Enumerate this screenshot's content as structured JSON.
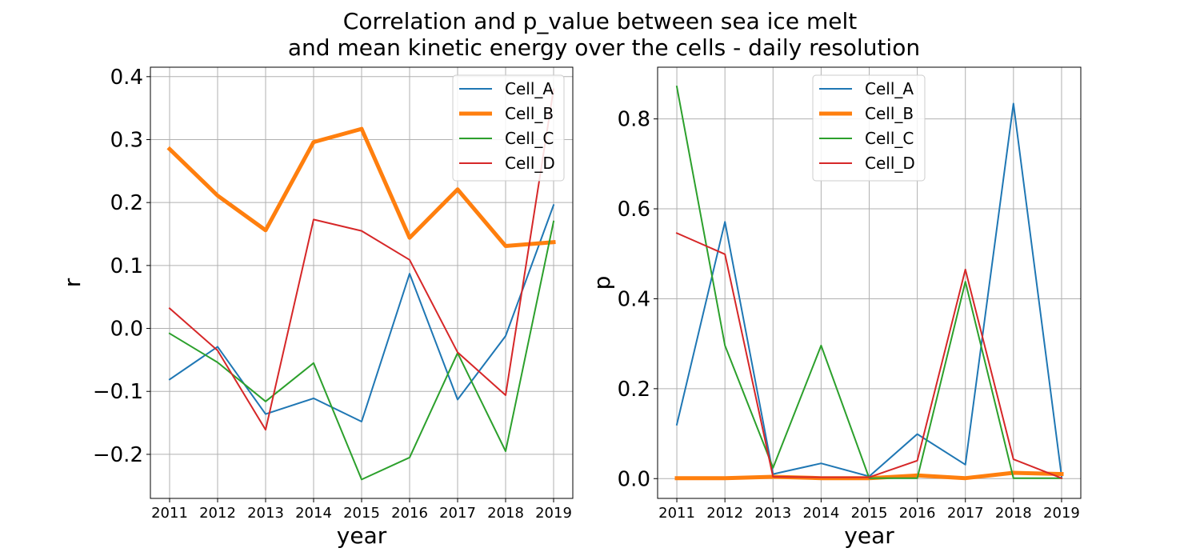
{
  "figure": {
    "title_line1": "Correlation and p_value between sea ice melt",
    "title_line2": "and mean kinetic energy over the cells - daily resolution"
  },
  "chart_data": [
    {
      "type": "line",
      "xlabel": "year",
      "ylabel": "r",
      "x": [
        2011,
        2012,
        2013,
        2014,
        2015,
        2016,
        2017,
        2018,
        2019
      ],
      "xlim": [
        2010.6,
        2019.4
      ],
      "ylim": [
        -0.27,
        0.415
      ],
      "xticks": [
        "2011",
        "2012",
        "2013",
        "2014",
        "2015",
        "2016",
        "2017",
        "2018",
        "2019"
      ],
      "yticks": [
        -0.2,
        -0.1,
        0.0,
        0.1,
        0.2,
        0.3,
        0.4
      ],
      "ytick_labels": [
        "−0.2",
        "−0.1",
        "0.0",
        "0.1",
        "0.2",
        "0.3",
        "0.4"
      ],
      "grid": true,
      "legend_position": "top-right",
      "series": [
        {
          "name": "Cell_A",
          "color": "#1f77b4",
          "width": 2,
          "values": [
            -0.081,
            -0.029,
            -0.136,
            -0.111,
            -0.148,
            0.087,
            -0.113,
            -0.012,
            0.196
          ]
        },
        {
          "name": "Cell_B",
          "color": "#ff7f0e",
          "width": 5,
          "values": [
            0.285,
            0.211,
            0.156,
            0.296,
            0.317,
            0.144,
            0.221,
            0.131,
            0.137
          ]
        },
        {
          "name": "Cell_C",
          "color": "#2ca02c",
          "width": 2,
          "values": [
            -0.008,
            -0.054,
            -0.116,
            -0.055,
            -0.24,
            -0.205,
            -0.039,
            -0.195,
            0.17
          ]
        },
        {
          "name": "Cell_D",
          "color": "#d62728",
          "width": 2,
          "values": [
            0.032,
            -0.035,
            -0.161,
            0.173,
            0.155,
            0.109,
            -0.038,
            -0.106,
            0.38
          ]
        }
      ]
    },
    {
      "type": "line",
      "xlabel": "year",
      "ylabel": "p",
      "x": [
        2011,
        2012,
        2013,
        2014,
        2015,
        2016,
        2017,
        2018,
        2019
      ],
      "xlim": [
        2010.6,
        2019.4
      ],
      "ylim": [
        -0.044,
        0.915
      ],
      "xticks": [
        "2011",
        "2012",
        "2013",
        "2014",
        "2015",
        "2016",
        "2017",
        "2018",
        "2019"
      ],
      "yticks": [
        0.0,
        0.2,
        0.4,
        0.6,
        0.8
      ],
      "ytick_labels": [
        "0.0",
        "0.2",
        "0.4",
        "0.6",
        "0.8"
      ],
      "grid": true,
      "legend_position": "top-center",
      "series": [
        {
          "name": "Cell_A",
          "color": "#1f77b4",
          "width": 2,
          "values": [
            0.12,
            0.571,
            0.01,
            0.034,
            0.005,
            0.099,
            0.031,
            0.834,
            0.005
          ]
        },
        {
          "name": "Cell_B",
          "color": "#ff7f0e",
          "width": 5,
          "values": [
            0.001,
            0.001,
            0.004,
            0.001,
            0.001,
            0.007,
            0.001,
            0.013,
            0.01
          ]
        },
        {
          "name": "Cell_C",
          "color": "#2ca02c",
          "width": 2,
          "values": [
            0.872,
            0.296,
            0.024,
            0.296,
            0.001,
            0.001,
            0.438,
            0.001,
            0.001
          ]
        },
        {
          "name": "Cell_D",
          "color": "#d62728",
          "width": 2,
          "values": [
            0.546,
            0.499,
            0.004,
            0.003,
            0.003,
            0.04,
            0.465,
            0.043,
            0.001
          ]
        }
      ]
    }
  ]
}
